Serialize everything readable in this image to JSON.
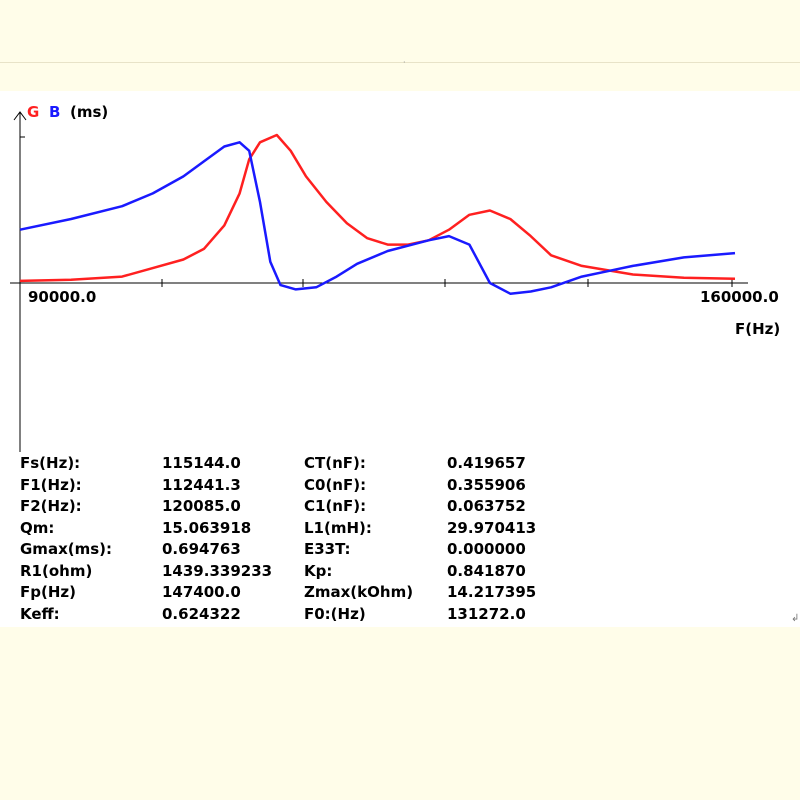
{
  "chart_data": {
    "type": "line",
    "legend": [
      {
        "label": "G",
        "color": "#ff2020"
      },
      {
        "label": "B",
        "color": "#1a1aff"
      }
    ],
    "yunit": "(ms)",
    "xlabel": "F(Hz)",
    "xlim": [
      90000.0,
      160000.0
    ],
    "xtick_labels": [
      "90000.0",
      "160000.0"
    ],
    "grid": false,
    "series": [
      {
        "name": "G",
        "color": "#ff2020",
        "x": [
          90000,
          95000,
          100000,
          103000,
          106000,
          108000,
          110000,
          111500,
          112441,
          113500,
          115144,
          116500,
          118000,
          120000,
          122000,
          124000,
          126000,
          128000,
          130000,
          132000,
          134000,
          136000,
          138000,
          140000,
          142000,
          145000,
          150000,
          155000,
          160000
        ],
        "y": [
          0.01,
          0.015,
          0.03,
          0.07,
          0.11,
          0.16,
          0.27,
          0.42,
          0.58,
          0.66,
          0.694,
          0.62,
          0.5,
          0.38,
          0.28,
          0.21,
          0.18,
          0.18,
          0.2,
          0.25,
          0.32,
          0.34,
          0.3,
          0.22,
          0.13,
          0.08,
          0.04,
          0.025,
          0.02
        ]
      },
      {
        "name": "B",
        "color": "#1a1aff",
        "x": [
          90000,
          95000,
          100000,
          103000,
          106000,
          108000,
          110000,
          111500,
          112441,
          113500,
          114500,
          115500,
          117000,
          119000,
          121000,
          123000,
          126000,
          130000,
          132000,
          134000,
          136000,
          138000,
          140000,
          142000,
          145000,
          148000,
          150000,
          155000,
          160000
        ],
        "y": [
          0.25,
          0.3,
          0.36,
          0.42,
          0.5,
          0.57,
          0.64,
          0.66,
          0.62,
          0.38,
          0.1,
          -0.01,
          -0.03,
          -0.02,
          0.03,
          0.09,
          0.15,
          0.2,
          0.22,
          0.18,
          0.0,
          -0.05,
          -0.04,
          -0.02,
          0.03,
          0.06,
          0.08,
          0.12,
          0.14
        ]
      }
    ]
  },
  "params": [
    {
      "k1": "Fs(Hz):",
      "v1": "115144.0",
      "k2": "CT(nF):",
      "v2": "0.419657"
    },
    {
      "k1": "F1(Hz):",
      "v1": "112441.3",
      "k2": "C0(nF):",
      "v2": "0.355906"
    },
    {
      "k1": "F2(Hz):",
      "v1": "120085.0",
      "k2": "C1(nF):",
      "v2": "0.063752"
    },
    {
      "k1": "Qm:",
      "v1": "15.063918",
      "k2": "L1(mH):",
      "v2": "29.970413"
    },
    {
      "k1": "Gmax(ms):",
      "v1": "0.694763",
      "k2": "E33T:",
      "v2": "0.000000"
    },
    {
      "k1": "R1(ohm)",
      "v1": "1439.339233",
      "k2": "Kp:",
      "v2": "0.841870"
    },
    {
      "k1": "Fp(Hz)",
      "v1": "147400.0",
      "k2": "Zmax(kOhm)",
      "v2": "14.217395"
    },
    {
      "k1": "Keff:",
      "v1": "0.624322",
      "k2": "F0:(Hz)",
      "v2": "131272.0"
    }
  ]
}
